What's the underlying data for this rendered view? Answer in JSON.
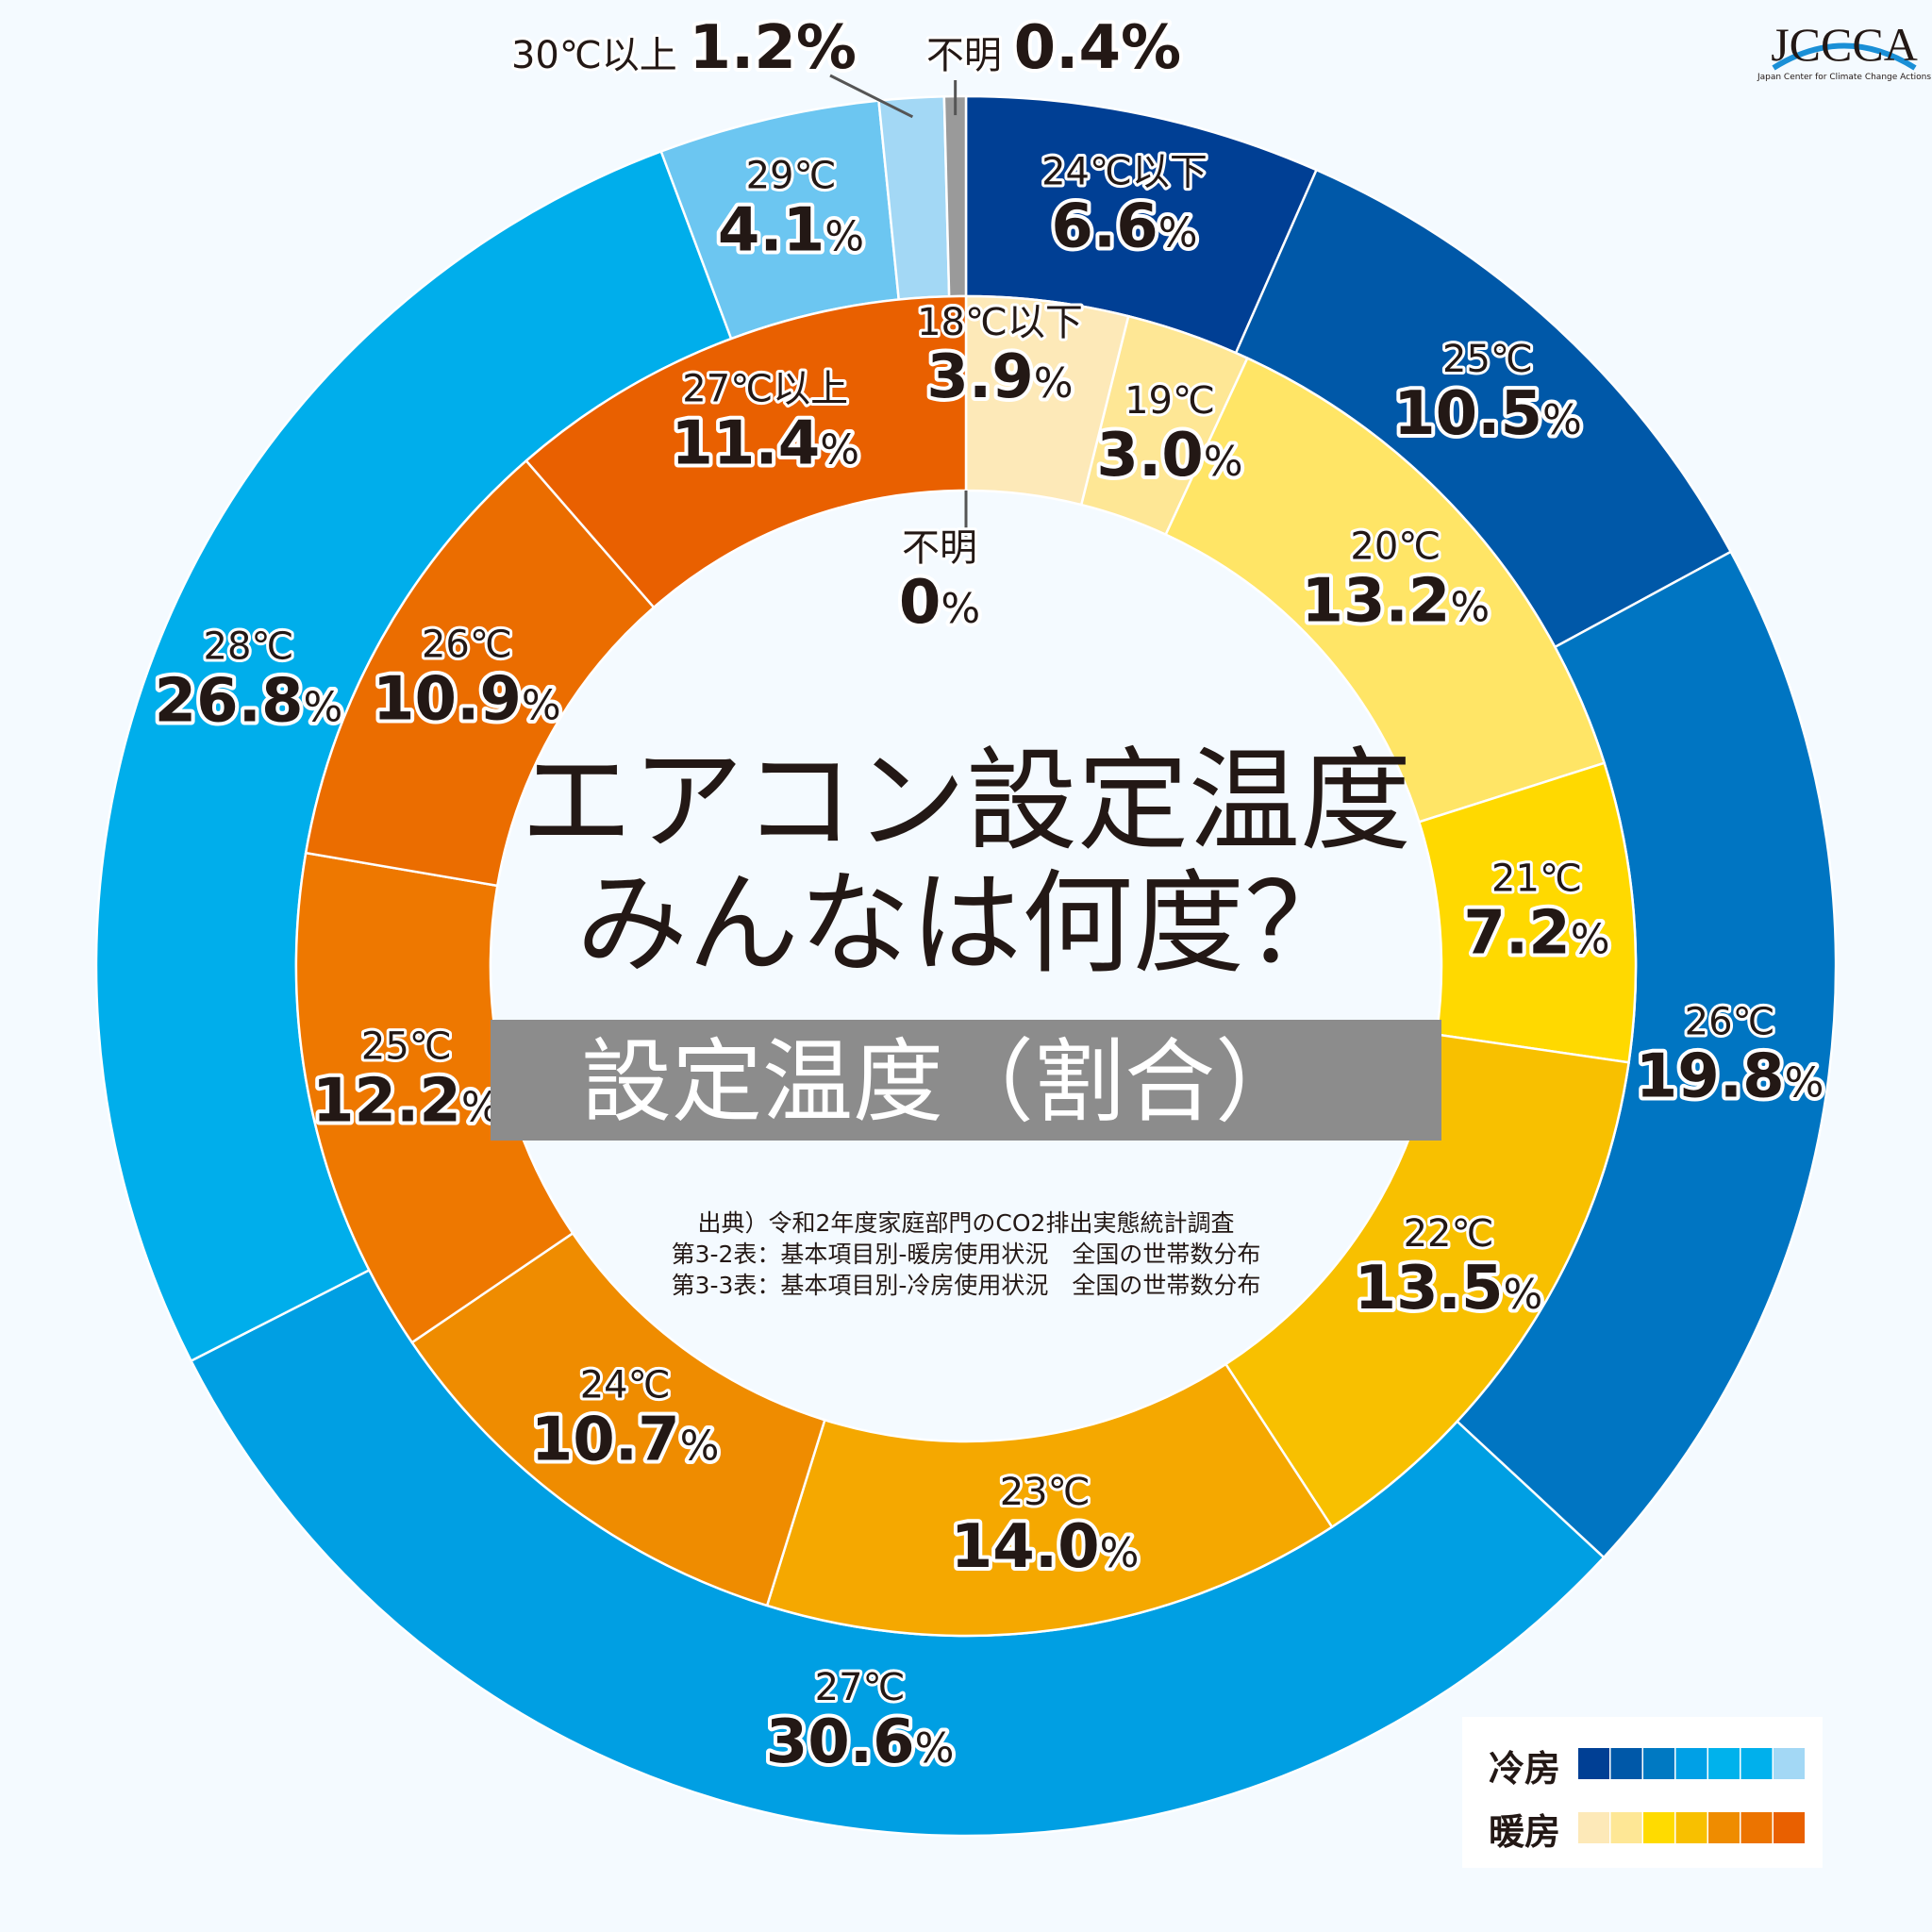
{
  "logo": {
    "text": "JCCCA",
    "subtitle": "Japan Center for Climate Change Actions"
  },
  "title": {
    "line1": "エアコン設定温度",
    "line2": "みんなは何度？"
  },
  "band": "設定温度（割合）",
  "source": [
    "出典）令和2年度家庭部門のCO2排出実態統計調査",
    "第3-2表：基本項目別-暖房使用状況　全国の世帯数分布",
    "第3-3表：基本項目別-冷房使用状況　全国の世帯数分布"
  ],
  "legend": {
    "cooling_label": "冷房",
    "heating_label": "暖房",
    "cooling_colors": [
      "#003f94",
      "#0058a8",
      "#0079c2",
      "#00a0e6",
      "#00b2ec",
      "#00b0ec",
      "#a3d8f5"
    ],
    "heating_colors": [
      "#fde9b8",
      "#fee795",
      "#ffdb00",
      "#f8c000",
      "#ef8c00",
      "#ec7400",
      "#e96000"
    ]
  },
  "chart_data": {
    "type": "pie",
    "subtype": "nested-donut",
    "unit": "%",
    "series": [
      {
        "name": "冷房",
        "ring": "outer",
        "categories": [
          "24℃以下",
          "25℃",
          "26℃",
          "27℃",
          "28℃",
          "29℃",
          "30℃以上",
          "不明"
        ],
        "values": [
          6.6,
          10.5,
          19.8,
          30.6,
          26.8,
          4.1,
          1.2,
          0.4
        ],
        "labels": [
          "6.6",
          "10.5",
          "19.8",
          "30.6",
          "26.8",
          "4.1",
          "1.2",
          "0.4"
        ],
        "colors": [
          "#003f94",
          "#0058a8",
          "#0075c2",
          "#009fe3",
          "#00aeeb",
          "#6cc6f1",
          "#a3d8f5",
          "#9a9a9a"
        ]
      },
      {
        "name": "暖房",
        "ring": "inner",
        "categories": [
          "18℃以下",
          "19℃",
          "20℃",
          "21℃",
          "22℃",
          "23℃",
          "24℃",
          "25℃",
          "26℃",
          "27℃以上",
          "不明"
        ],
        "values": [
          3.9,
          3.0,
          13.2,
          7.2,
          13.5,
          14.0,
          10.7,
          12.2,
          10.9,
          11.4,
          0
        ],
        "labels": [
          "3.9",
          "3.0",
          "13.2",
          "7.2",
          "13.5",
          "14.0",
          "10.7",
          "12.2",
          "10.9",
          "11.4",
          "0"
        ],
        "colors": [
          "#fde9b8",
          "#fee795",
          "#ffe566",
          "#ffd900",
          "#f8c000",
          "#f5a800",
          "#ef8c00",
          "#ee7800",
          "#eb6d00",
          "#e96000",
          "#cccccc"
        ]
      }
    ]
  }
}
